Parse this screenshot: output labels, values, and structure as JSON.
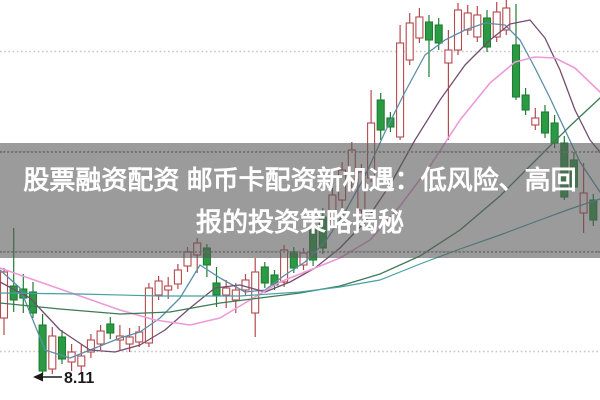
{
  "banner": {
    "line1": "股票融资配资 邮币卡配资新机遇：低风险、高回",
    "line2": "报的投资策略揭秘",
    "bg_color": "rgba(88,88,88,0.60)",
    "text_color": "#ffffff"
  },
  "annotation": {
    "low_label": "8.11",
    "color": "#1a1a1a"
  },
  "chart_data": {
    "type": "candlestick",
    "title": "",
    "xlabel": "",
    "ylabel": "",
    "ylim": [
      8.006,
      9.606
    ],
    "grid": "horizontal-dotted",
    "gridline_prices": [
      9.4,
      9.0,
      8.6,
      8.2
    ],
    "grid_color": "#c6c6c6",
    "colors": {
      "up_stroke": "#b5494e",
      "up_fill": "#ffffff",
      "down_fill": "#2a9b43",
      "down_stroke": "#1f7d33"
    },
    "candle_layout": {
      "x_start": 4,
      "x_step": 9.66,
      "body_width": 7
    },
    "candles": [
      [
        8.334,
        8.534,
        8.266,
        8.518
      ],
      [
        8.462,
        8.694,
        8.358,
        8.406
      ],
      [
        8.45,
        8.51,
        8.354,
        8.414
      ],
      [
        8.438,
        8.478,
        8.334,
        8.354
      ],
      [
        8.306,
        8.35,
        8.106,
        8.122
      ],
      [
        8.13,
        8.298,
        8.11,
        8.262
      ],
      [
        8.258,
        8.286,
        8.15,
        8.17
      ],
      [
        8.158,
        8.23,
        8.122,
        8.198
      ],
      [
        8.142,
        8.23,
        8.11,
        8.182
      ],
      [
        8.198,
        8.27,
        8.174,
        8.246
      ],
      [
        8.23,
        8.306,
        8.206,
        8.282
      ],
      [
        8.31,
        8.338,
        8.25,
        8.274
      ],
      [
        8.246,
        8.306,
        8.206,
        8.262
      ],
      [
        8.23,
        8.294,
        8.198,
        8.258
      ],
      [
        8.238,
        8.302,
        8.218,
        8.278
      ],
      [
        8.234,
        8.474,
        8.218,
        8.454
      ],
      [
        8.426,
        8.502,
        8.406,
        8.482
      ],
      [
        8.446,
        8.498,
        8.41,
        8.462
      ],
      [
        8.47,
        8.55,
        8.45,
        8.526
      ],
      [
        8.542,
        8.618,
        8.518,
        8.598
      ],
      [
        8.586,
        8.654,
        8.514,
        8.634
      ],
      [
        8.614,
        8.63,
        8.498,
        8.546
      ],
      [
        8.474,
        8.538,
        8.378,
        8.426
      ],
      [
        8.426,
        8.486,
        8.374,
        8.454
      ],
      [
        8.406,
        8.474,
        8.354,
        8.446
      ],
      [
        8.446,
        8.51,
        8.422,
        8.486
      ],
      [
        8.354,
        8.574,
        8.258,
        8.518
      ],
      [
        8.538,
        8.558,
        8.454,
        8.474
      ],
      [
        8.506,
        8.526,
        8.446,
        8.466
      ],
      [
        8.478,
        8.626,
        8.458,
        8.606
      ],
      [
        8.598,
        8.618,
        8.514,
        8.534
      ],
      [
        8.546,
        8.614,
        8.526,
        8.594
      ],
      [
        8.686,
        8.71,
        8.542,
        8.566
      ],
      [
        8.738,
        8.774,
        8.59,
        8.614
      ],
      [
        8.726,
        8.854,
        8.702,
        8.826
      ],
      [
        8.806,
        8.958,
        8.774,
        8.926
      ],
      [
        8.886,
        9.038,
        8.854,
        9.006
      ],
      [
        8.766,
        8.95,
        8.738,
        8.918
      ],
      [
        8.894,
        9.246,
        8.878,
        9.114
      ],
      [
        9.206,
        9.234,
        9.046,
        9.086
      ],
      [
        9.134,
        9.158,
        9.078,
        9.098
      ],
      [
        9.058,
        9.506,
        9.046,
        9.434
      ],
      [
        9.366,
        9.554,
        9.346,
        9.514
      ],
      [
        9.454,
        9.574,
        9.434,
        9.538
      ],
      [
        9.518,
        9.546,
        9.298,
        9.446
      ],
      [
        9.506,
        9.534,
        9.406,
        9.434
      ],
      [
        9.354,
        9.486,
        9.046,
        9.406
      ],
      [
        9.406,
        9.594,
        9.386,
        9.566
      ],
      [
        9.486,
        9.586,
        9.466,
        9.554
      ],
      [
        9.458,
        9.582,
        9.438,
        9.546
      ],
      [
        9.534,
        9.566,
        9.398,
        9.418
      ],
      [
        9.458,
        9.598,
        9.438,
        9.558
      ],
      [
        9.486,
        9.606,
        9.466,
        9.574
      ],
      [
        9.426,
        9.59,
        9.206,
        9.218
      ],
      [
        9.226,
        9.254,
        9.146,
        9.166
      ],
      [
        9.106,
        9.174,
        9.086,
        9.134
      ],
      [
        9.158,
        9.186,
        9.054,
        9.074
      ],
      [
        9.114,
        9.146,
        9.014,
        9.034
      ],
      [
        9.034,
        9.062,
        8.806,
        8.818
      ],
      [
        8.966,
        8.998,
        8.838,
        8.858
      ],
      [
        8.754,
        8.954,
        8.674,
        8.834
      ],
      [
        8.806,
        8.83,
        8.702,
        8.726
      ]
    ],
    "ma_lines": [
      {
        "name": "ma-fast",
        "color": "#5b8fa8",
        "width": 1.3,
        "points": [
          [
            0,
            8.526
          ],
          [
            20,
            8.454
          ],
          [
            45,
            8.206
          ],
          [
            70,
            8.174
          ],
          [
            95,
            8.214
          ],
          [
            120,
            8.254
          ],
          [
            140,
            8.278
          ],
          [
            160,
            8.334
          ],
          [
            180,
            8.414
          ],
          [
            200,
            8.546
          ],
          [
            220,
            8.494
          ],
          [
            245,
            8.438
          ],
          [
            265,
            8.446
          ],
          [
            285,
            8.506
          ],
          [
            305,
            8.558
          ],
          [
            325,
            8.638
          ],
          [
            345,
            8.758
          ],
          [
            365,
            8.902
          ],
          [
            385,
            9.078
          ],
          [
            405,
            9.238
          ],
          [
            425,
            9.386
          ],
          [
            445,
            9.446
          ],
          [
            465,
            9.486
          ],
          [
            485,
            9.514
          ],
          [
            505,
            9.506
          ],
          [
            520,
            9.446
          ],
          [
            535,
            9.334
          ],
          [
            550,
            9.214
          ],
          [
            565,
            9.086
          ],
          [
            580,
            8.958
          ],
          [
            600,
            8.838
          ]
        ]
      },
      {
        "name": "ma-mid",
        "color": "#744d70",
        "width": 1.3,
        "points": [
          [
            0,
            8.478
          ],
          [
            30,
            8.414
          ],
          [
            60,
            8.286
          ],
          [
            90,
            8.206
          ],
          [
            115,
            8.198
          ],
          [
            140,
            8.226
          ],
          [
            165,
            8.286
          ],
          [
            190,
            8.374
          ],
          [
            215,
            8.454
          ],
          [
            240,
            8.466
          ],
          [
            265,
            8.438
          ],
          [
            290,
            8.478
          ],
          [
            315,
            8.534
          ],
          [
            340,
            8.614
          ],
          [
            365,
            8.718
          ],
          [
            390,
            8.866
          ],
          [
            415,
            9.046
          ],
          [
            440,
            9.206
          ],
          [
            465,
            9.346
          ],
          [
            490,
            9.446
          ],
          [
            510,
            9.51
          ],
          [
            530,
            9.526
          ],
          [
            545,
            9.454
          ],
          [
            560,
            9.326
          ],
          [
            575,
            9.166
          ],
          [
            590,
            9.046
          ],
          [
            600,
            8.998
          ]
        ]
      },
      {
        "name": "ma-pink",
        "color": "#ee9ad8",
        "width": 1.6,
        "points": [
          [
            0,
            8.534
          ],
          [
            40,
            8.478
          ],
          [
            80,
            8.422
          ],
          [
            120,
            8.366
          ],
          [
            155,
            8.326
          ],
          [
            190,
            8.306
          ],
          [
            220,
            8.334
          ],
          [
            250,
            8.406
          ],
          [
            280,
            8.478
          ],
          [
            310,
            8.526
          ],
          [
            340,
            8.574
          ],
          [
            370,
            8.646
          ],
          [
            400,
            8.782
          ],
          [
            430,
            8.942
          ],
          [
            460,
            9.126
          ],
          [
            490,
            9.274
          ],
          [
            515,
            9.358
          ],
          [
            535,
            9.378
          ],
          [
            555,
            9.374
          ],
          [
            575,
            9.334
          ],
          [
            600,
            9.238
          ]
        ]
      },
      {
        "name": "ma-slow-green",
        "color": "#3c7a55",
        "width": 1.3,
        "points": [
          [
            0,
            8.394
          ],
          [
            60,
            8.37
          ],
          [
            120,
            8.35
          ],
          [
            170,
            8.358
          ],
          [
            220,
            8.394
          ],
          [
            260,
            8.414
          ],
          [
            300,
            8.434
          ],
          [
            340,
            8.462
          ],
          [
            380,
            8.51
          ],
          [
            420,
            8.582
          ],
          [
            460,
            8.686
          ],
          [
            500,
            8.822
          ],
          [
            540,
            8.982
          ],
          [
            570,
            9.102
          ],
          [
            600,
            9.214
          ]
        ]
      },
      {
        "name": "ma-long-teal",
        "color": "#46a0a5",
        "width": 1.2,
        "points": [
          [
            0,
            8.434
          ],
          [
            80,
            8.43
          ],
          [
            160,
            8.422
          ],
          [
            240,
            8.422
          ],
          [
            300,
            8.438
          ],
          [
            340,
            8.458
          ],
          [
            380,
            8.486
          ],
          [
            420,
            8.55
          ],
          [
            460,
            8.61
          ],
          [
            500,
            8.666
          ],
          [
            540,
            8.726
          ],
          [
            570,
            8.77
          ],
          [
            600,
            8.81
          ]
        ]
      }
    ]
  }
}
